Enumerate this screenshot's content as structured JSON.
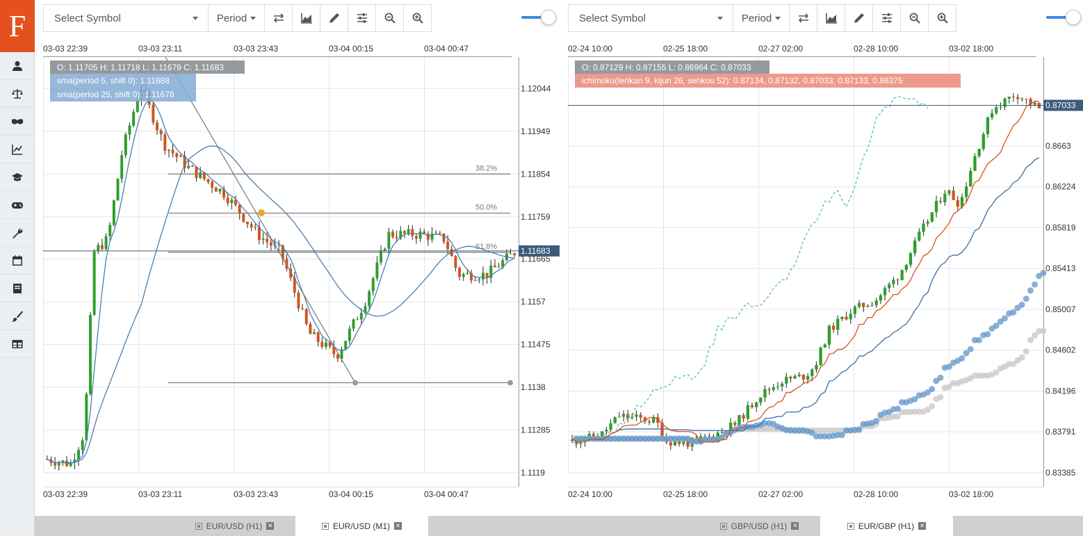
{
  "app": {
    "logo_letter": "F",
    "accent": "#e4501e"
  },
  "sidebar": {
    "items": [
      {
        "name": "user-icon"
      },
      {
        "name": "balance-scale-icon"
      },
      {
        "name": "handshake-icon"
      },
      {
        "name": "line-chart-icon"
      },
      {
        "name": "graduation-cap-icon"
      },
      {
        "name": "gamepad-icon"
      },
      {
        "name": "wrench-icon"
      },
      {
        "name": "calendar-icon"
      },
      {
        "name": "book-icon"
      },
      {
        "name": "paint-brush-icon"
      },
      {
        "name": "table-icon"
      }
    ]
  },
  "left_chart": {
    "toolbar": {
      "symbol_placeholder": "Select Symbol",
      "period_label": "Period"
    },
    "x_labels": [
      "03-03 22:39",
      "03-03 23:11",
      "03-03 23:43",
      "03-04 00:15",
      "03-04 00:47"
    ],
    "y_labels": [
      "1.12044",
      "1.11949",
      "1.11854",
      "1.11759",
      "1.11665",
      "1.1157",
      "1.11475",
      "1.1138",
      "1.11285",
      "1.1119"
    ],
    "ylim": [
      1.1119,
      1.12114
    ],
    "last_price": "1.11683",
    "last_price_value": 1.11683,
    "ohlc": "O: 1.11705 H: 1.11718 L: 1.11679 C: 1.11683",
    "indicators": [
      "sma(period 5, shift 0): 1.11688",
      "sma(period 25, shift 0): 1.11678"
    ],
    "fib_labels": [
      "38.2%",
      "50.0%",
      "61.8%"
    ],
    "fib_values": [
      1.11854,
      1.11767,
      1.1168
    ],
    "fib_low": 1.1139,
    "candle_count": 120,
    "up_color": "#2ca02c",
    "down_color": "#d4541c",
    "sma_color": "#4a7fb0"
  },
  "right_chart": {
    "toolbar": {
      "symbol_placeholder": "Select Symbol",
      "period_label": "Period"
    },
    "x_labels": [
      "02-24 10:00",
      "02-25 18:00",
      "02-27 02:00",
      "02-28 10:00",
      "03-02 18:00"
    ],
    "y_labels": [
      "0.8663",
      "0.86224",
      "0.85819",
      "0.85413",
      "0.85007",
      "0.84602",
      "0.84196",
      "0.83791",
      "0.83385"
    ],
    "ylim": [
      0.83385,
      0.87513
    ],
    "last_price": "0.87033",
    "last_price_value": 0.87033,
    "ohlc": "O: 0.87129 H: 0.87155 L: 0.86964 C: 0.87033",
    "indicators": [
      "ichimoku(tenkan 9, kijun 26, senkou 52): 0.87134, 0.87132, 0.87033, 0.87133, 0.86375"
    ],
    "candle_count": 110,
    "up_color": "#2ca02c",
    "down_color": "#d4541c",
    "tenkan_color": "#d4541c",
    "kijun_color": "#3a6ea5",
    "chikou_color": "#4cb8a8",
    "cloud_a_color": "#5f95c9",
    "cloud_b_color": "#c9c9c9"
  },
  "tabs": {
    "left": [
      {
        "label": "EUR/USD (H1)",
        "active": false
      },
      {
        "label": "EUR/USD (M1)",
        "active": true
      }
    ],
    "right": [
      {
        "label": "GBP/USD (H1)",
        "active": false
      },
      {
        "label": "EUR/GBP (H1)",
        "active": true
      }
    ],
    "close_glyph": "✕"
  }
}
